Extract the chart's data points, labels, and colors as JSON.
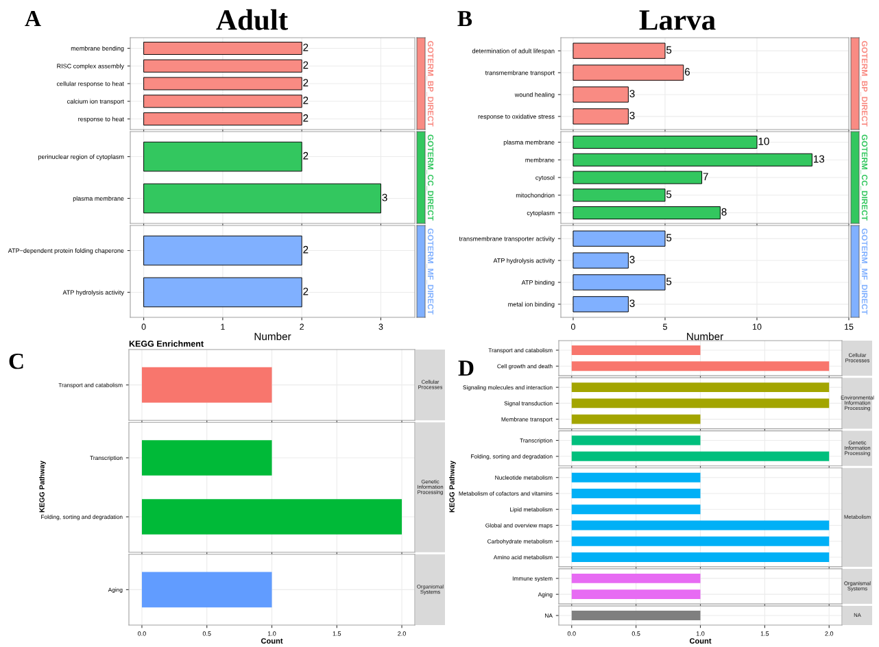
{
  "chart_data": [
    {
      "type": "bar",
      "orientation": "horizontal",
      "title": "Adult",
      "annotations": [
        "A"
      ],
      "categories": [
        "membrane bending",
        "RISC complex assembly",
        "cellular response to heat",
        "calcium ion transport",
        "response to heat"
      ],
      "values": [
        2,
        2,
        2,
        2,
        2
      ],
      "color": "#f98b83",
      "xlim": [
        -0.17,
        3.43
      ],
      "xticks": [
        0,
        1,
        2,
        3
      ],
      "tick_labels": "y",
      "grid": true,
      "data_labels": true,
      "y2label": "GOTERM_BP_DIRECT"
    },
    {
      "type": "bar",
      "orientation": "horizontal",
      "categories": [
        "perinuclear region of cytoplasm",
        "plasma membrane"
      ],
      "values": [
        2,
        3
      ],
      "color": "#33c75f",
      "xlim": [
        -0.17,
        3.43
      ],
      "xticks": [
        0,
        1,
        2,
        3
      ],
      "tick_labels": "y",
      "grid": true,
      "data_labels": true,
      "y2label": "GOTERM_CC_DIRECT"
    },
    {
      "type": "bar",
      "orientation": "horizontal",
      "xlabel": "Number",
      "categories": [
        "ATP−dependent protein folding chaperone",
        "ATP hydrolysis activity"
      ],
      "values": [
        2,
        2
      ],
      "color": "#80b0ff",
      "xlim": [
        -0.17,
        3.43
      ],
      "xticks": [
        0,
        1,
        2,
        3
      ],
      "grid": true,
      "data_labels": true,
      "y2label": "GOTERM_MF_DIRECT"
    },
    {
      "type": "bar",
      "orientation": "horizontal",
      "title": "Larva",
      "annotations": [
        "B"
      ],
      "categories": [
        "determination of adult lifespan",
        "transmembrane transport",
        "wound healing",
        "response to oxidative stress"
      ],
      "values": [
        5,
        6,
        3,
        3
      ],
      "color": "#f98b83",
      "xlim": [
        -0.67,
        15
      ],
      "xticks": [
        0,
        5,
        10,
        15
      ],
      "tick_labels": "y",
      "grid": true,
      "data_labels": true,
      "y2label": "GOTERM_BP_DIRECT"
    },
    {
      "type": "bar",
      "orientation": "horizontal",
      "categories": [
        "plasma membrane",
        "membrane",
        "cytosol",
        "mitochondrion",
        "cytoplasm"
      ],
      "values": [
        10,
        13,
        7,
        5,
        8
      ],
      "color": "#33c75f",
      "xlim": [
        -0.67,
        15
      ],
      "xticks": [
        0,
        5,
        10,
        15
      ],
      "tick_labels": "y",
      "grid": true,
      "data_labels": true,
      "y2label": "GOTERM_CC_DIRECT"
    },
    {
      "type": "bar",
      "orientation": "horizontal",
      "xlabel": "Number",
      "categories": [
        "transmembrane transporter activity",
        "ATP hydrolysis activity",
        "ATP binding",
        "metal ion binding"
      ],
      "values": [
        5,
        3,
        5,
        3
      ],
      "color": "#80b0ff",
      "xlim": [
        -0.67,
        15
      ],
      "xticks": [
        0,
        5,
        10,
        15
      ],
      "grid": true,
      "data_labels": true,
      "y2label": "GOTERM_MF_DIRECT"
    },
    {
      "type": "bar",
      "orientation": "horizontal",
      "title": "KEGG Enrichment",
      "annotations": [
        "C"
      ],
      "categories": [
        "Transport and catabolism"
      ],
      "values": [
        1
      ],
      "color": "#f8766d",
      "xlim": [
        -0.1,
        2.1
      ],
      "xticks": [
        0,
        0.5,
        1,
        1.5,
        2
      ],
      "tick_labels": "y",
      "grid": true,
      "y2label": "Cellular Processes"
    },
    {
      "type": "bar",
      "orientation": "horizontal",
      "ylabel": "KEGG Pathway",
      "categories": [
        "Transcription",
        "Folding, sorting and degradation"
      ],
      "values": [
        1,
        2
      ],
      "color": "#00ba38",
      "xlim": [
        -0.1,
        2.1
      ],
      "xticks": [
        0,
        0.5,
        1,
        1.5,
        2
      ],
      "tick_labels": "y",
      "grid": true,
      "y2label": "Genetic Information Processing"
    },
    {
      "type": "bar",
      "orientation": "horizontal",
      "xlabel": "Count",
      "categories": [
        "Aging"
      ],
      "values": [
        1
      ],
      "color": "#619cff",
      "xlim": [
        -0.1,
        2.1
      ],
      "xticks": [
        {
          "value": 0,
          "label": "0.0"
        },
        {
          "value": 0.5,
          "label": "0.5"
        },
        {
          "value": 1,
          "label": "1.0"
        },
        {
          "value": 1.5,
          "label": "1.5"
        },
        {
          "value": 2,
          "label": "2.0"
        }
      ],
      "grid": true,
      "y2label": "Organismal Systems"
    },
    {
      "type": "bar",
      "orientation": "horizontal",
      "annotations": [
        "D"
      ],
      "categories": [
        "Transport and catabolism",
        "Cell growth and death"
      ],
      "values": [
        1,
        2
      ],
      "color": "#f8766d",
      "xlim": [
        -0.1,
        2.1
      ],
      "xticks": [
        0,
        0.5,
        1,
        1.5,
        2
      ],
      "tick_labels": "y",
      "grid": true,
      "y2label": "Cellular Processes"
    },
    {
      "type": "bar",
      "orientation": "horizontal",
      "categories": [
        "Signaling molecules and interaction",
        "Signal transduction",
        "Membrane transport"
      ],
      "values": [
        2,
        2,
        1
      ],
      "color": "#a3a500",
      "xlim": [
        -0.1,
        2.1
      ],
      "xticks": [
        0,
        0.5,
        1,
        1.5,
        2
      ],
      "tick_labels": "y",
      "grid": true,
      "y2label": "Environmental Information Processing"
    },
    {
      "type": "bar",
      "orientation": "horizontal",
      "categories": [
        "Transcription",
        "Folding, sorting and degradation"
      ],
      "values": [
        1,
        2
      ],
      "color": "#00bf7d",
      "xlim": [
        -0.1,
        2.1
      ],
      "xticks": [
        0,
        0.5,
        1,
        1.5,
        2
      ],
      "tick_labels": "y",
      "grid": true,
      "y2label": "Genetic Information Processing"
    },
    {
      "type": "bar",
      "orientation": "horizontal",
      "ylabel": "KEGG Pathway",
      "categories": [
        "Nucleotide metabolism",
        "Metabolism of cofactors and vitamins",
        "Lipid metabolism",
        "Global and overview maps",
        "Carbohydrate metabolism",
        "Amino acid metabolism"
      ],
      "values": [
        1,
        1,
        1,
        2,
        2,
        2
      ],
      "color": "#00b0f6",
      "xlim": [
        -0.1,
        2.1
      ],
      "xticks": [
        0,
        0.5,
        1,
        1.5,
        2
      ],
      "tick_labels": "y",
      "grid": true,
      "y2label": "Metabolism"
    },
    {
      "type": "bar",
      "orientation": "horizontal",
      "categories": [
        "Immune system",
        "Aging"
      ],
      "values": [
        1,
        1
      ],
      "color": "#e76bf3",
      "xlim": [
        -0.1,
        2.1
      ],
      "xticks": [
        0,
        0.5,
        1,
        1.5,
        2
      ],
      "tick_labels": "y",
      "grid": true,
      "y2label": "Organismal Systems"
    },
    {
      "type": "bar",
      "orientation": "horizontal",
      "xlabel": "Count",
      "categories": [
        "NA"
      ],
      "values": [
        1
      ],
      "color": "#7f7f7f",
      "xlim": [
        -0.1,
        2.1
      ],
      "xticks": [
        {
          "value": 0,
          "label": "0.0"
        },
        {
          "value": 0.5,
          "label": "0.5"
        },
        {
          "value": 1,
          "label": "1.0"
        },
        {
          "value": 1.5,
          "label": "1.5"
        },
        {
          "value": 2,
          "label": "2.0"
        }
      ],
      "grid": true,
      "y2label": "NA"
    }
  ]
}
